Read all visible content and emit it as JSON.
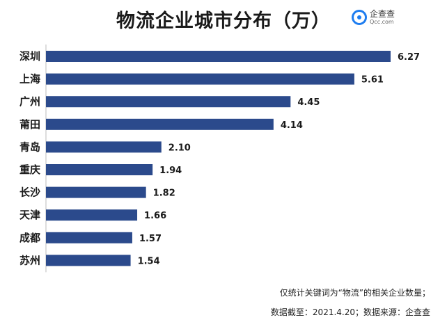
{
  "title": "物流企业城市分布（万）",
  "logo": {
    "name": "企查查",
    "domain": "Qcc.com"
  },
  "chart_data": {
    "type": "bar",
    "orientation": "horizontal",
    "title": "物流企业城市分布（万）",
    "categories": [
      "深圳",
      "上海",
      "广州",
      "莆田",
      "青岛",
      "重庆",
      "长沙",
      "天津",
      "成都",
      "苏州"
    ],
    "values": [
      6.27,
      5.61,
      4.45,
      4.14,
      2.1,
      1.94,
      1.82,
      1.66,
      1.57,
      1.54
    ],
    "value_labels": [
      "6.27",
      "5.61",
      "4.45",
      "4.14",
      "2.10",
      "1.94",
      "1.82",
      "1.66",
      "1.57",
      "1.54"
    ],
    "xlim": [
      0,
      6.27
    ],
    "grid": false,
    "bar_color": "#2b4a8c"
  },
  "footnotes": [
    "仅统计关键词为“物流”的相关企业数量；",
    "数据截至：2021.4.20；数据来源：企查查"
  ]
}
